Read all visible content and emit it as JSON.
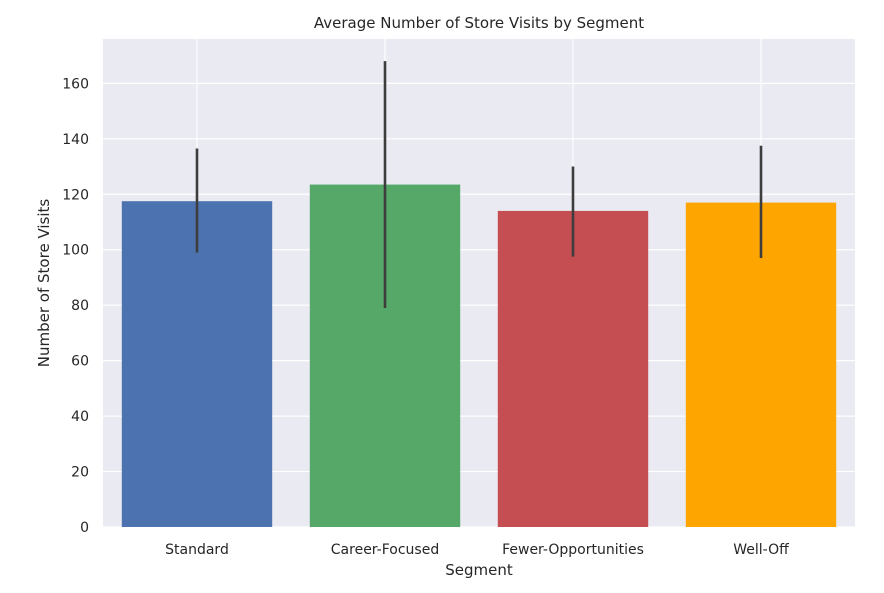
{
  "chart_data": {
    "type": "bar",
    "title": "Average Number of Store Visits by Segment",
    "xlabel": "Segment",
    "ylabel": "Number of Store Visits",
    "categories": [
      "Standard",
      "Career-Focused",
      "Fewer-Opportunities",
      "Well-Off"
    ],
    "values": [
      117.5,
      123.5,
      114,
      117
    ],
    "error_low": [
      99,
      79,
      97.5,
      97
    ],
    "error_high": [
      136.5,
      168,
      130,
      137.5
    ],
    "bar_colors": [
      "#4c72b0",
      "#55a868",
      "#c44e52",
      "#ffa500"
    ],
    "ylim": [
      0,
      176
    ],
    "yticks": [
      0,
      20,
      40,
      60,
      80,
      100,
      120,
      140,
      160
    ],
    "grid": true,
    "background_color": "#eaeaf2",
    "grid_color": "#ffffff",
    "errorbar_color": "#3d3d3d"
  }
}
